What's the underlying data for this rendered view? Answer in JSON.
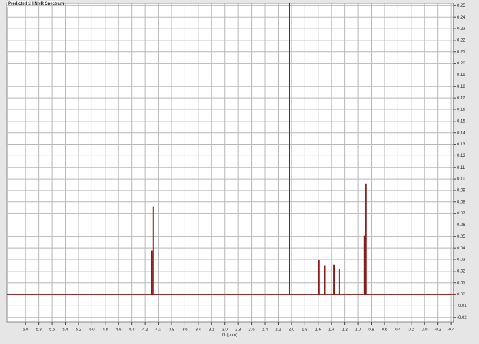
{
  "chart_data": {
    "type": "stick",
    "title": "Predicted 1H NMR Spectrum",
    "xlabel": "f1 (ppm)",
    "xlim": [
      6.28,
      -0.44
    ],
    "ylim": [
      -0.024,
      0.252
    ],
    "xticks": [
      {
        "value": 6,
        "label": "6.0"
      },
      5.8,
      5.6,
      5.4,
      5.2,
      {
        "value": 5,
        "label": "5.0"
      },
      4.8,
      4.6,
      4.4,
      4.2,
      {
        "value": 4,
        "label": "4.0"
      },
      3.8,
      3.6,
      3.4,
      3.2,
      {
        "value": 3,
        "label": "3.0"
      },
      2.8,
      2.6,
      2.4,
      2.2,
      {
        "value": 2,
        "label": "2.0"
      },
      1.8,
      1.6,
      1.4,
      1.2,
      {
        "value": 1,
        "label": "1.0"
      },
      0.8,
      0.6,
      0.4,
      0.2,
      {
        "value": 0,
        "label": "0.0"
      },
      -0.2,
      -0.4
    ],
    "yticks": [
      0.25,
      0.24,
      0.23,
      0.22,
      0.21,
      {
        "value": 0.2,
        "label": "0.20"
      },
      0.19,
      0.18,
      0.17,
      0.16,
      0.15,
      0.14,
      0.13,
      0.12,
      0.11,
      {
        "value": 0.1,
        "label": "0.10"
      },
      0.09,
      0.08,
      0.07,
      0.06,
      0.05,
      0.04,
      0.03,
      0.02,
      0.01,
      {
        "value": 0,
        "label": "0.00"
      },
      -0.01,
      -0.02
    ],
    "grid": true,
    "color": "#8b1a1a",
    "x": [
      4.08,
      4.1,
      2.03,
      1.59,
      1.5,
      1.36,
      1.28,
      0.88,
      0.9
    ],
    "values": [
      0.076,
      0.038,
      0.26,
      0.03,
      0.025,
      0.026,
      0.022,
      0.096,
      0.051
    ]
  }
}
